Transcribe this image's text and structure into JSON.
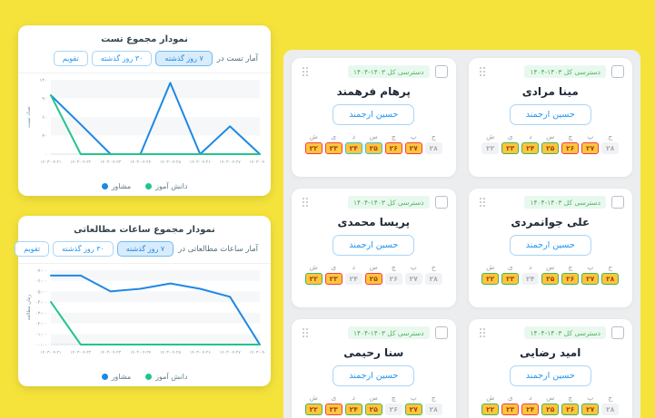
{
  "page": {
    "bg": "#F5E33C",
    "panel_bg": "#EBEDEF"
  },
  "chart_cards": [
    {
      "title": "نمودار مجموع تست",
      "filter_label": "آمار تست در",
      "range_buttons": [
        "۷ روز گذشته",
        "۳۰ روز گذشته",
        "تقویم"
      ],
      "selected_button": "۷ روز گذشته",
      "chart_data": {
        "type": "line",
        "x": [
          "۱۴۰۳-۰۴-۲۱",
          "۱۴۰۳-۰۴-۲۲",
          "۱۴۰۳-۰۴-۲۳",
          "۱۴۰۳-۰۴-۲۴",
          "۱۴۰۳-۰۴-۲۵",
          "۱۴۰۳-۰۴-۲۶",
          "۱۴۰۳-۰۴-۲۷",
          "۱۴۰۳-۰۴-۲۸"
        ],
        "ylabel": "تعداد تست",
        "y_ticks": [
          "۱۲۰",
          "۹۰",
          "۶۰",
          "۳۰",
          "۰"
        ],
        "ylim": [
          0,
          120
        ],
        "grid": "striped",
        "legend_position": "bottom",
        "series": [
          {
            "name": "مشاور",
            "color": "#1E88E5",
            "values": [
              95,
              48,
              0,
              0,
              115,
              0,
              45,
              0
            ]
          },
          {
            "name": "دانش آموز",
            "color": "#22C58B",
            "values": [
              95,
              0,
              0,
              0,
              0,
              0,
              0,
              0
            ]
          }
        ]
      }
    },
    {
      "title": "نمودار مجموع ساعات مطالعاتی",
      "filter_label": "آمار ساعات مطالعاتی در",
      "range_buttons": [
        "۷ روز گذشته",
        "۳۰ روز گذشته",
        "تقویم"
      ],
      "selected_button": "۷ روز گذشته",
      "chart_data": {
        "type": "line",
        "x": [
          "۱۴۰۳-۰۴-۲۱",
          "۱۴۰۳-۰۴-۲۲",
          "۱۴۰۳-۰۴-۲۳",
          "۱۴۰۳-۰۴-۲۴",
          "۱۴۰۳-۰۴-۲۵",
          "۱۴۰۳-۰۴-۲۶",
          "۱۴۰۳-۰۴-۲۷",
          "۱۴۰۳-۰۴-۲۸"
        ],
        "ylabel": "زمان مطالعه",
        "y_ticks": [
          "۰۷:۰۰",
          "۰۶:۰۰",
          "۰۵:۰۰",
          "۰۴:۰۰",
          "۰۳:۰۰",
          "۰۲:۰۰",
          "۰۱:۰۰",
          "۰۰:۰۰"
        ],
        "ylim": [
          0,
          420
        ],
        "grid": "striped",
        "legend_position": "bottom",
        "series": [
          {
            "name": "مشاور",
            "color": "#1E88E5",
            "values": [
              390,
              390,
              300,
              315,
              345,
              315,
              270,
              0
            ]
          },
          {
            "name": "دانش آموز",
            "color": "#22C58B",
            "values": [
              240,
              0,
              0,
              0,
              0,
              0,
              0,
              0
            ]
          }
        ]
      }
    }
  ],
  "students": {
    "badge": "دسترسی کل ۱۴۰۳-۱۴۰۴",
    "mentor_button": "حسین ارجمند",
    "day_letters": [
      "ج",
      "پ",
      "چ",
      "س",
      "د",
      "ی",
      "ش"
    ],
    "day_numbers": [
      "۲۸",
      "۲۷",
      "۲۶",
      "۲۵",
      "۲۴",
      "۲۳",
      "۲۲"
    ],
    "cards": [
      {
        "name": "مینا مرادی",
        "day_states": [
          "none",
          "red",
          "red",
          "green",
          "green",
          "green",
          "none"
        ]
      },
      {
        "name": "پرهام فرهمند",
        "day_states": [
          "none",
          "red",
          "red",
          "cyan",
          "cyan",
          "red",
          "red"
        ]
      },
      {
        "name": "علی جوانمردی",
        "day_states": [
          "green",
          "green",
          "green",
          "green",
          "none",
          "green",
          "green"
        ]
      },
      {
        "name": "پریسا محمدی",
        "day_states": [
          "none",
          "none",
          "none",
          "red",
          "none",
          "red",
          "green"
        ]
      },
      {
        "name": "امید رضایی",
        "day_states": [
          "none",
          "green",
          "green",
          "green",
          "red",
          "red",
          "green"
        ]
      },
      {
        "name": "سنا رحیمی",
        "day_states": [
          "none",
          "green",
          "none",
          "green",
          "green",
          "red",
          "green"
        ]
      }
    ],
    "day_state_styles": {
      "red": {
        "bg": "#FFC53F",
        "border": "#F03E3E",
        "text": "#A0450B"
      },
      "green": {
        "bg": "#FFC53F",
        "border": "#46B450",
        "text": "#A0450B"
      },
      "cyan": {
        "bg": "#FFC53F",
        "border": "#33C1D8",
        "text": "#A0450B"
      },
      "none": {
        "bg": "#F1F2F4",
        "border": "transparent",
        "text": "#A7ABB1"
      }
    }
  }
}
